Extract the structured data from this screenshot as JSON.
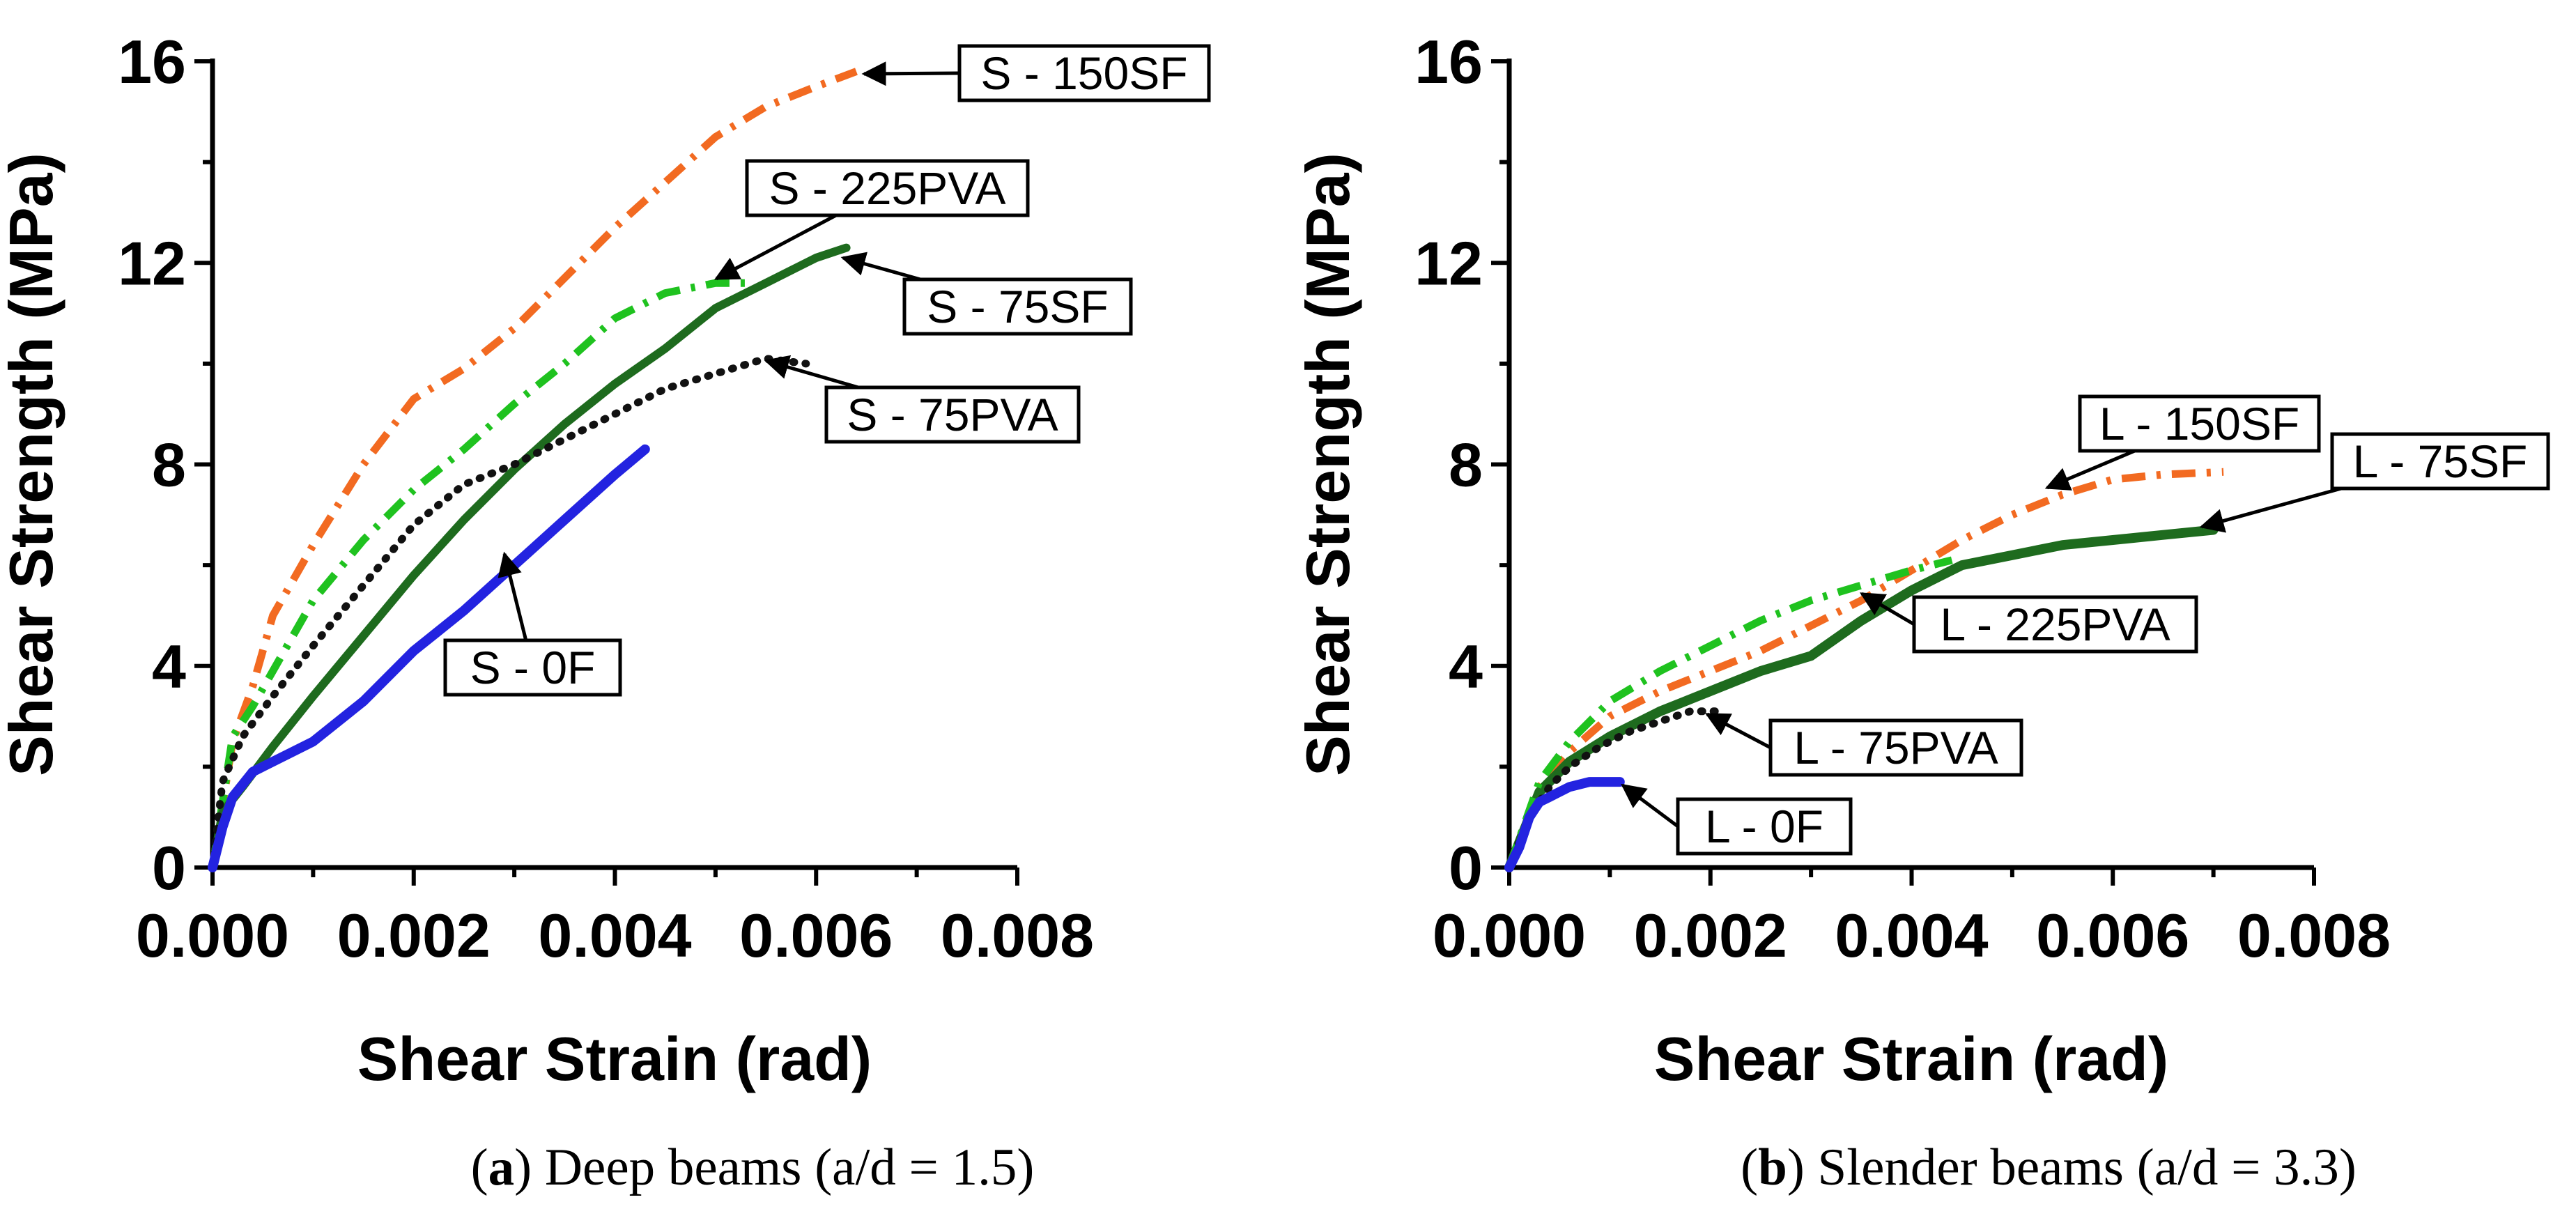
{
  "chart_data": [
    {
      "type": "line",
      "panel": "a",
      "caption_letter": "a",
      "caption_text": ") Deep beams (a/d = 1.5)",
      "caption_open": "(",
      "xlabel": "Shear Strain (rad)",
      "ylabel": "Shear Strength (MPa)",
      "xlim": [
        0,
        0.008
      ],
      "ylim": [
        0,
        16
      ],
      "x_ticks": [
        0,
        0.002,
        0.004,
        0.006,
        0.008
      ],
      "x_tick_labels": [
        "0.000",
        "0.002",
        "0.004",
        "0.006",
        "0.008"
      ],
      "y_ticks": [
        0,
        4,
        8,
        12,
        16
      ],
      "y_tick_labels": [
        "0",
        "4",
        "8",
        "12",
        "16"
      ],
      "series": [
        {
          "name": "S - 150SF",
          "color": "#F26A21",
          "style": "dashdot",
          "x": [
            0,
            0.0002,
            0.0004,
            0.0006,
            0.001,
            0.0015,
            0.002,
            0.0025,
            0.003,
            0.0035,
            0.004,
            0.0045,
            0.005,
            0.0055,
            0.006,
            0.0064
          ],
          "y": [
            0,
            2.5,
            3.6,
            5.0,
            6.4,
            8.0,
            9.3,
            9.9,
            10.7,
            11.7,
            12.7,
            13.6,
            14.5,
            15.1,
            15.5,
            15.8
          ]
        },
        {
          "name": "S - 225PVA",
          "color": "#1FC21F",
          "style": "dashdot",
          "x": [
            0,
            0.0002,
            0.0004,
            0.0006,
            0.001,
            0.0015,
            0.002,
            0.0025,
            0.003,
            0.0035,
            0.004,
            0.0045,
            0.005,
            0.0053
          ],
          "y": [
            0,
            2.6,
            3.2,
            3.9,
            5.3,
            6.5,
            7.5,
            8.3,
            9.2,
            10.0,
            10.9,
            11.4,
            11.6,
            11.6
          ]
        },
        {
          "name": "S - 75SF",
          "color": "#1E6B1E",
          "style": "solid",
          "x": [
            0,
            0.0001,
            0.0003,
            0.0006,
            0.001,
            0.0015,
            0.002,
            0.0025,
            0.003,
            0.0035,
            0.004,
            0.0045,
            0.005,
            0.0055,
            0.006,
            0.0063
          ],
          "y": [
            0,
            1.1,
            1.6,
            2.4,
            3.4,
            4.6,
            5.8,
            6.9,
            7.9,
            8.8,
            9.6,
            10.3,
            11.1,
            11.6,
            12.1,
            12.3
          ]
        },
        {
          "name": "S - 75PVA",
          "color": "#111111",
          "style": "dotted",
          "x": [
            0,
            0.0001,
            0.0003,
            0.0006,
            0.001,
            0.0015,
            0.002,
            0.0025,
            0.003,
            0.0035,
            0.004,
            0.0045,
            0.005,
            0.0055,
            0.0059
          ],
          "y": [
            0,
            1.7,
            2.6,
            3.4,
            4.4,
            5.6,
            6.8,
            7.6,
            8.0,
            8.5,
            9.0,
            9.5,
            9.8,
            10.1,
            10.0
          ]
        },
        {
          "name": "S - 0F",
          "color": "#2323E0",
          "style": "solid-thick",
          "x": [
            0,
            0.0001,
            0.0002,
            0.0004,
            0.0006,
            0.001,
            0.0015,
            0.002,
            0.0025,
            0.003,
            0.0035,
            0.004,
            0.0043
          ],
          "y": [
            0,
            0.8,
            1.4,
            1.9,
            2.1,
            2.5,
            3.3,
            4.3,
            5.1,
            6.0,
            6.9,
            7.8,
            8.3
          ]
        }
      ],
      "callouts": [
        {
          "label": "S - 150SF"
        },
        {
          "label": "S - 225PVA"
        },
        {
          "label": "S - 75SF"
        },
        {
          "label": "S - 75PVA"
        },
        {
          "label": "S - 0F"
        }
      ]
    },
    {
      "type": "line",
      "panel": "b",
      "caption_letter": "b",
      "caption_text": ") Slender beams (a/d = 3.3)",
      "caption_open": "(",
      "xlabel": "Shear Strain (rad)",
      "ylabel": "Shear Strength (MPa)",
      "xlim": [
        0,
        0.008
      ],
      "ylim": [
        0,
        16
      ],
      "x_ticks": [
        0,
        0.002,
        0.004,
        0.006,
        0.008
      ],
      "x_tick_labels": [
        "0.000",
        "0.002",
        "0.004",
        "0.006",
        "0.008"
      ],
      "y_ticks": [
        0,
        4,
        8,
        12,
        16
      ],
      "y_tick_labels": [
        "0",
        "4",
        "8",
        "12",
        "16"
      ],
      "series": [
        {
          "name": "L - 150SF",
          "color": "#F26A21",
          "style": "dashdot",
          "x": [
            0,
            0.0003,
            0.0006,
            0.001,
            0.0015,
            0.002,
            0.0025,
            0.003,
            0.0035,
            0.004,
            0.0045,
            0.005,
            0.0055,
            0.006,
            0.0065,
            0.0071
          ],
          "y": [
            0,
            1.6,
            2.3,
            3.0,
            3.5,
            3.9,
            4.3,
            4.8,
            5.3,
            5.9,
            6.5,
            7.0,
            7.4,
            7.7,
            7.8,
            7.85
          ]
        },
        {
          "name": "L - 75SF",
          "color": "#1E6B1E",
          "style": "solid-thick",
          "x": [
            0,
            0.0003,
            0.0006,
            0.001,
            0.0015,
            0.002,
            0.0025,
            0.003,
            0.0035,
            0.004,
            0.0045,
            0.005,
            0.0055,
            0.006,
            0.0065,
            0.007
          ],
          "y": [
            0,
            1.5,
            2.1,
            2.6,
            3.1,
            3.5,
            3.9,
            4.2,
            4.9,
            5.5,
            6.0,
            6.2,
            6.4,
            6.5,
            6.6,
            6.7
          ]
        },
        {
          "name": "L - 225PVA",
          "color": "#1FC21F",
          "style": "dashdot",
          "x": [
            0,
            0.0003,
            0.0006,
            0.001,
            0.0015,
            0.002,
            0.0025,
            0.003,
            0.0035,
            0.004,
            0.0044
          ],
          "y": [
            0,
            1.7,
            2.5,
            3.3,
            3.9,
            4.4,
            4.9,
            5.3,
            5.6,
            5.9,
            6.1
          ]
        },
        {
          "name": "L - 75PVA",
          "color": "#111111",
          "style": "dotted",
          "x": [
            0,
            0.0002,
            0.0004,
            0.0006,
            0.0009,
            0.0012,
            0.0015,
            0.0018,
            0.0021
          ],
          "y": [
            0,
            1.0,
            1.6,
            2.0,
            2.4,
            2.7,
            2.9,
            3.1,
            3.1
          ]
        },
        {
          "name": "L - 0F",
          "color": "#2323E0",
          "style": "solid-thick",
          "x": [
            0,
            0.0001,
            0.0002,
            0.0003,
            0.0004,
            0.0005,
            0.0006,
            0.0008,
            0.001,
            0.0011
          ],
          "y": [
            0,
            0.4,
            1.0,
            1.3,
            1.4,
            1.5,
            1.6,
            1.7,
            1.7,
            1.7
          ]
        }
      ],
      "callouts": [
        {
          "label": "L - 150SF"
        },
        {
          "label": "L - 75SF"
        },
        {
          "label": "L - 225PVA"
        },
        {
          "label": "L - 75PVA"
        },
        {
          "label": "L - 0F"
        }
      ]
    }
  ]
}
